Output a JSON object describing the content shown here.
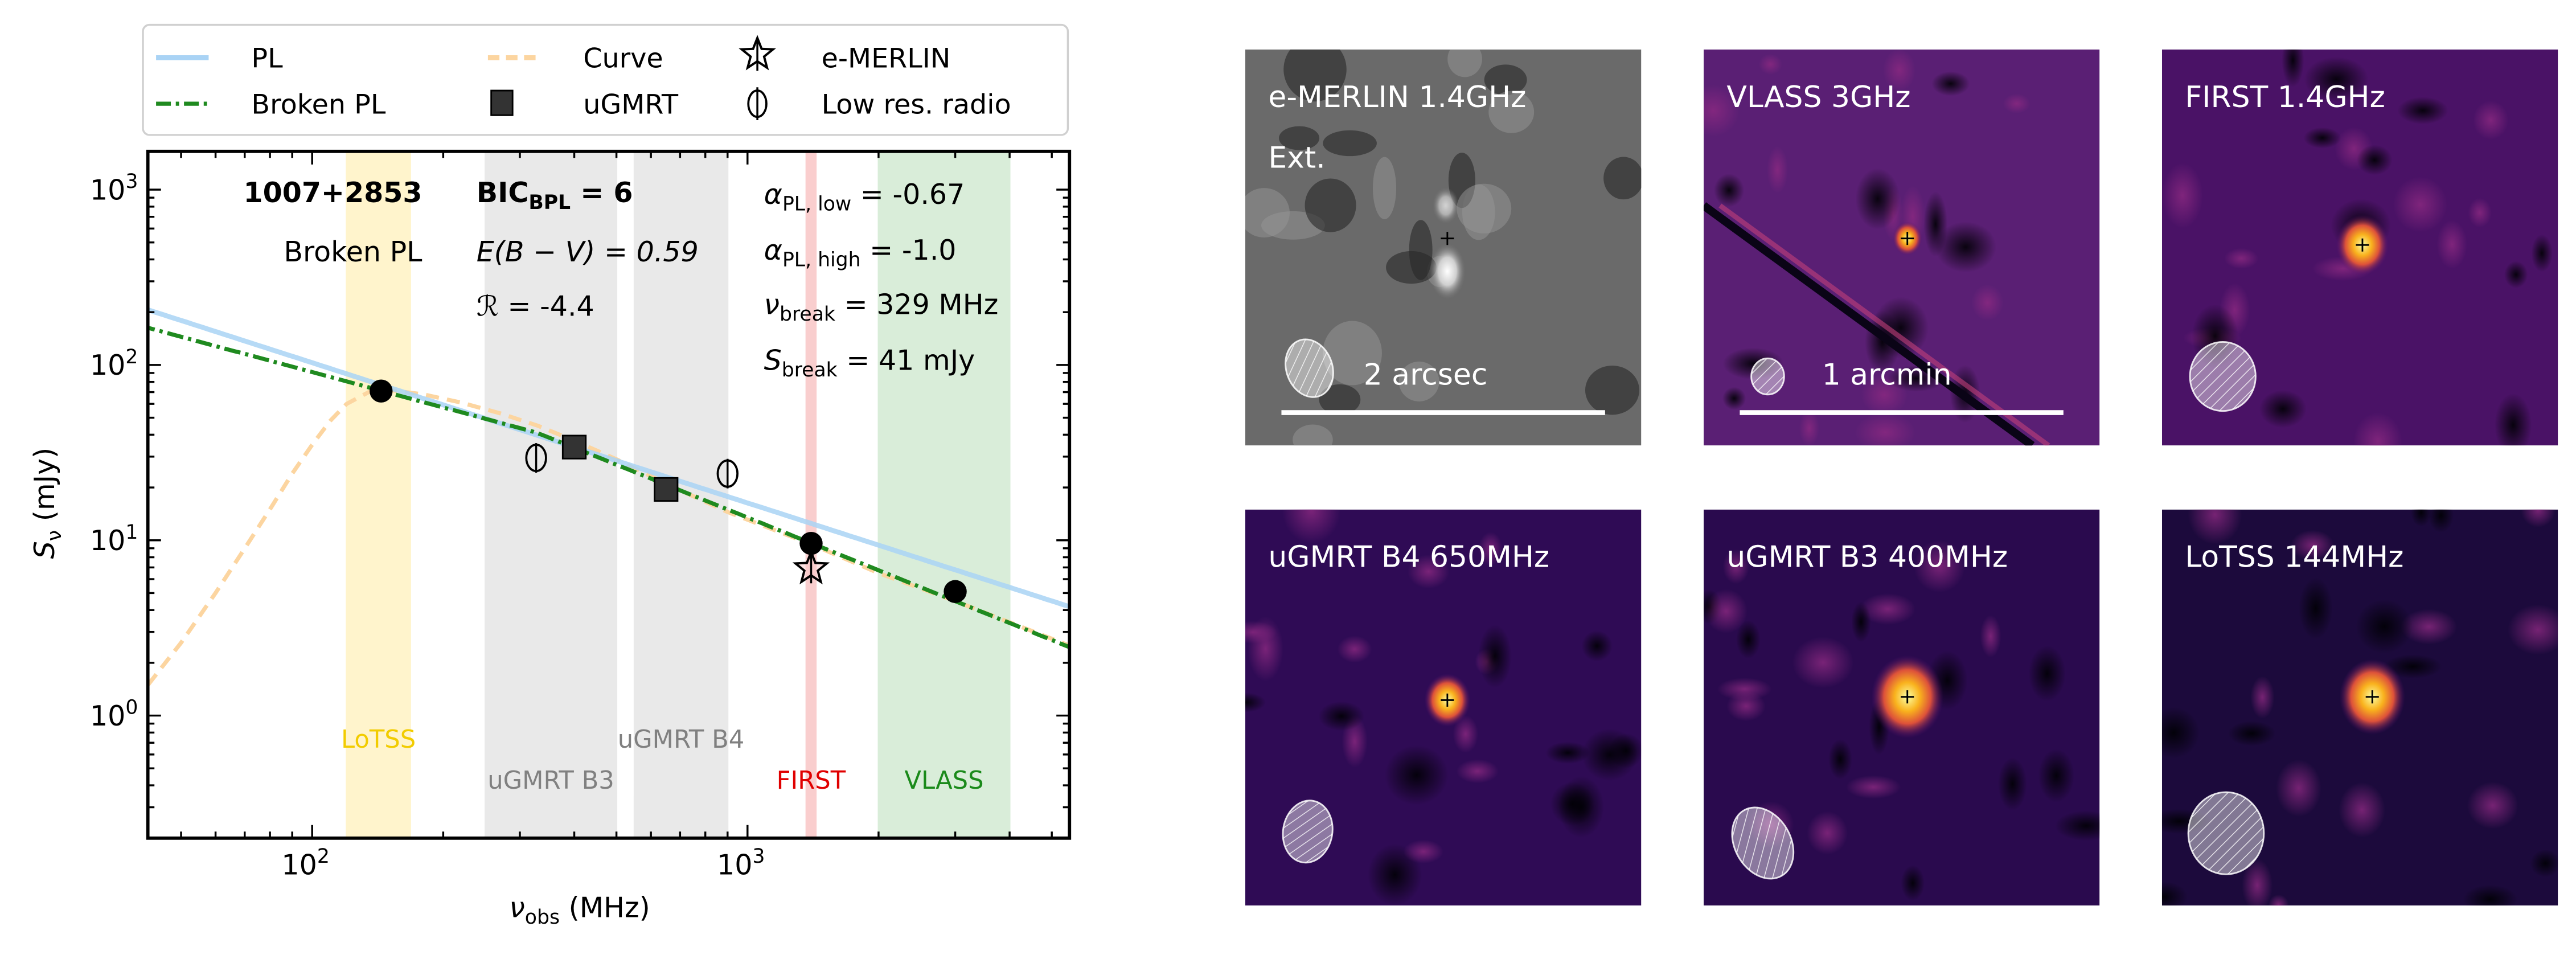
{
  "legend": {
    "items": [
      {
        "label": "PL",
        "kind": "line-pl"
      },
      {
        "label": "Curve",
        "kind": "line-curve"
      },
      {
        "label": "e-MERLIN",
        "kind": "star"
      },
      {
        "label": "Broken PL",
        "kind": "line-bpl"
      },
      {
        "label": "uGMRT",
        "kind": "square"
      },
      {
        "label": "Low res. radio",
        "kind": "open-circle"
      }
    ]
  },
  "annotations": {
    "source": "1007+2853",
    "model": "Broken PL",
    "bic": {
      "main": "BIC",
      "sub": "BPL",
      "rest": " = 6"
    },
    "ebv": {
      "main": "E(B − V) = 0.59"
    },
    "r": {
      "main": "ℛ = -4.4"
    },
    "alpha_low": {
      "main": "α",
      "sub": "PL, low",
      "rest": " = -0.67"
    },
    "alpha_high": {
      "main": "α",
      "sub": "PL, high",
      "rest": " = -1.0"
    },
    "nu_break": {
      "main": "ν",
      "sub": "break",
      "rest": " = 329 MHz"
    },
    "s_break": {
      "main": "S",
      "sub": "break",
      "rest": " = 41 mJy"
    }
  },
  "colors": {
    "pl": "#a9d3f5",
    "bpl": "#1f8a1f",
    "curve": "#fcd5a0",
    "marker": "#000000",
    "square": "#333333"
  },
  "chart_data": {
    "type": "scatter",
    "title": "",
    "xlabel": {
      "main": "ν",
      "sub": "obs",
      "rest": " (MHz)"
    },
    "ylabel": {
      "main": "S",
      "sub": "ν",
      "rest": " (mJy)"
    },
    "xscale": "log",
    "yscale": "log",
    "xlim": [
      42,
      5500
    ],
    "ylim": [
      0.2,
      1700
    ],
    "xticks": [
      {
        "value": 100,
        "base": "10",
        "exp": "2"
      },
      {
        "value": 1000,
        "base": "10",
        "exp": "3"
      }
    ],
    "yticks": [
      {
        "value": 1,
        "base": "10",
        "exp": "0"
      },
      {
        "value": 10,
        "base": "10",
        "exp": "1"
      },
      {
        "value": 100,
        "base": "10",
        "exp": "2"
      },
      {
        "value": 1000,
        "base": "10",
        "exp": "3"
      }
    ],
    "bands": [
      {
        "name": "LoTSS",
        "range": [
          120,
          168
        ],
        "fill": "#fff3c4",
        "label_color": "#f2cc00",
        "label_row": 1
      },
      {
        "name": "uGMRT B3",
        "range": [
          250,
          500
        ],
        "fill": "#e6e6e6",
        "label_color": "#808080",
        "label_row": 2
      },
      {
        "name": "uGMRT B4",
        "range": [
          550,
          900
        ],
        "fill": "#e6e6e6",
        "label_color": "#808080",
        "label_row": 1
      },
      {
        "name": "FIRST",
        "range": [
          1365,
          1435
        ],
        "fill": "#f9c6c6",
        "label_color": "#e00000",
        "label_row": 2
      },
      {
        "name": "VLASS",
        "range": [
          2000,
          4000
        ],
        "fill": "#d3ead3",
        "label_color": "#1a8a1a",
        "label_row": 2
      }
    ],
    "models": {
      "pl": {
        "name": "PL",
        "norm_mJy_at_100MHz": 103,
        "alpha": -0.8
      },
      "bpl": {
        "name": "Broken PL",
        "alpha_low": -0.67,
        "alpha_high": -1.0,
        "nu_break": 329,
        "s_break": 41
      },
      "curve": {
        "name": "Curve",
        "points": [
          [
            42,
            1.5
          ],
          [
            50,
            2.6
          ],
          [
            60,
            5
          ],
          [
            70,
            9
          ],
          [
            80,
            15
          ],
          [
            90,
            24
          ],
          [
            100,
            35
          ],
          [
            110,
            48
          ],
          [
            120,
            60
          ],
          [
            135,
            70
          ],
          [
            150,
            72
          ],
          [
            180,
            68
          ],
          [
            220,
            61
          ],
          [
            270,
            53
          ],
          [
            330,
            45
          ],
          [
            400,
            37
          ],
          [
            500,
            29
          ],
          [
            650,
            21
          ],
          [
            900,
            14.5
          ],
          [
            1400,
            9.5
          ],
          [
            2000,
            6.5
          ],
          [
            3000,
            4.5
          ],
          [
            5500,
            2.5
          ]
        ]
      }
    },
    "points": [
      {
        "survey": "LoTSS",
        "marker": "circle",
        "nu": 144,
        "s": 71
      },
      {
        "survey": "uGMRT B3",
        "marker": "square",
        "nu": 400,
        "s": 34
      },
      {
        "survey": "uGMRT B4",
        "marker": "square",
        "nu": 650,
        "s": 19.5
      },
      {
        "survey": "Low res. radio",
        "marker": "open-circle",
        "nu": 327,
        "s": 29.5
      },
      {
        "survey": "Low res. radio",
        "marker": "open-circle",
        "nu": 900,
        "s": 24
      },
      {
        "survey": "FIRST",
        "marker": "circle",
        "nu": 1400,
        "s": 9.6
      },
      {
        "survey": "e-MERLIN",
        "marker": "star",
        "nu": 1400,
        "s": 6.9
      },
      {
        "survey": "VLASS",
        "marker": "circle",
        "nu": 3000,
        "s": 5.1
      }
    ]
  },
  "panels": [
    {
      "title": "e-MERLIN 1.4GHz",
      "subtitle": "Ext.",
      "scalebar": "2 arcsec",
      "colormap": "gray"
    },
    {
      "title": "VLASS 3GHz",
      "scalebar": "1 arcmin",
      "colormap": "inferno"
    },
    {
      "title": "FIRST 1.4GHz",
      "colormap": "inferno"
    },
    {
      "title": "uGMRT B4 650MHz",
      "colormap": "inferno"
    },
    {
      "title": "uGMRT B3 400MHz",
      "colormap": "inferno"
    },
    {
      "title": "LoTSS 144MHz",
      "colormap": "inferno"
    }
  ]
}
